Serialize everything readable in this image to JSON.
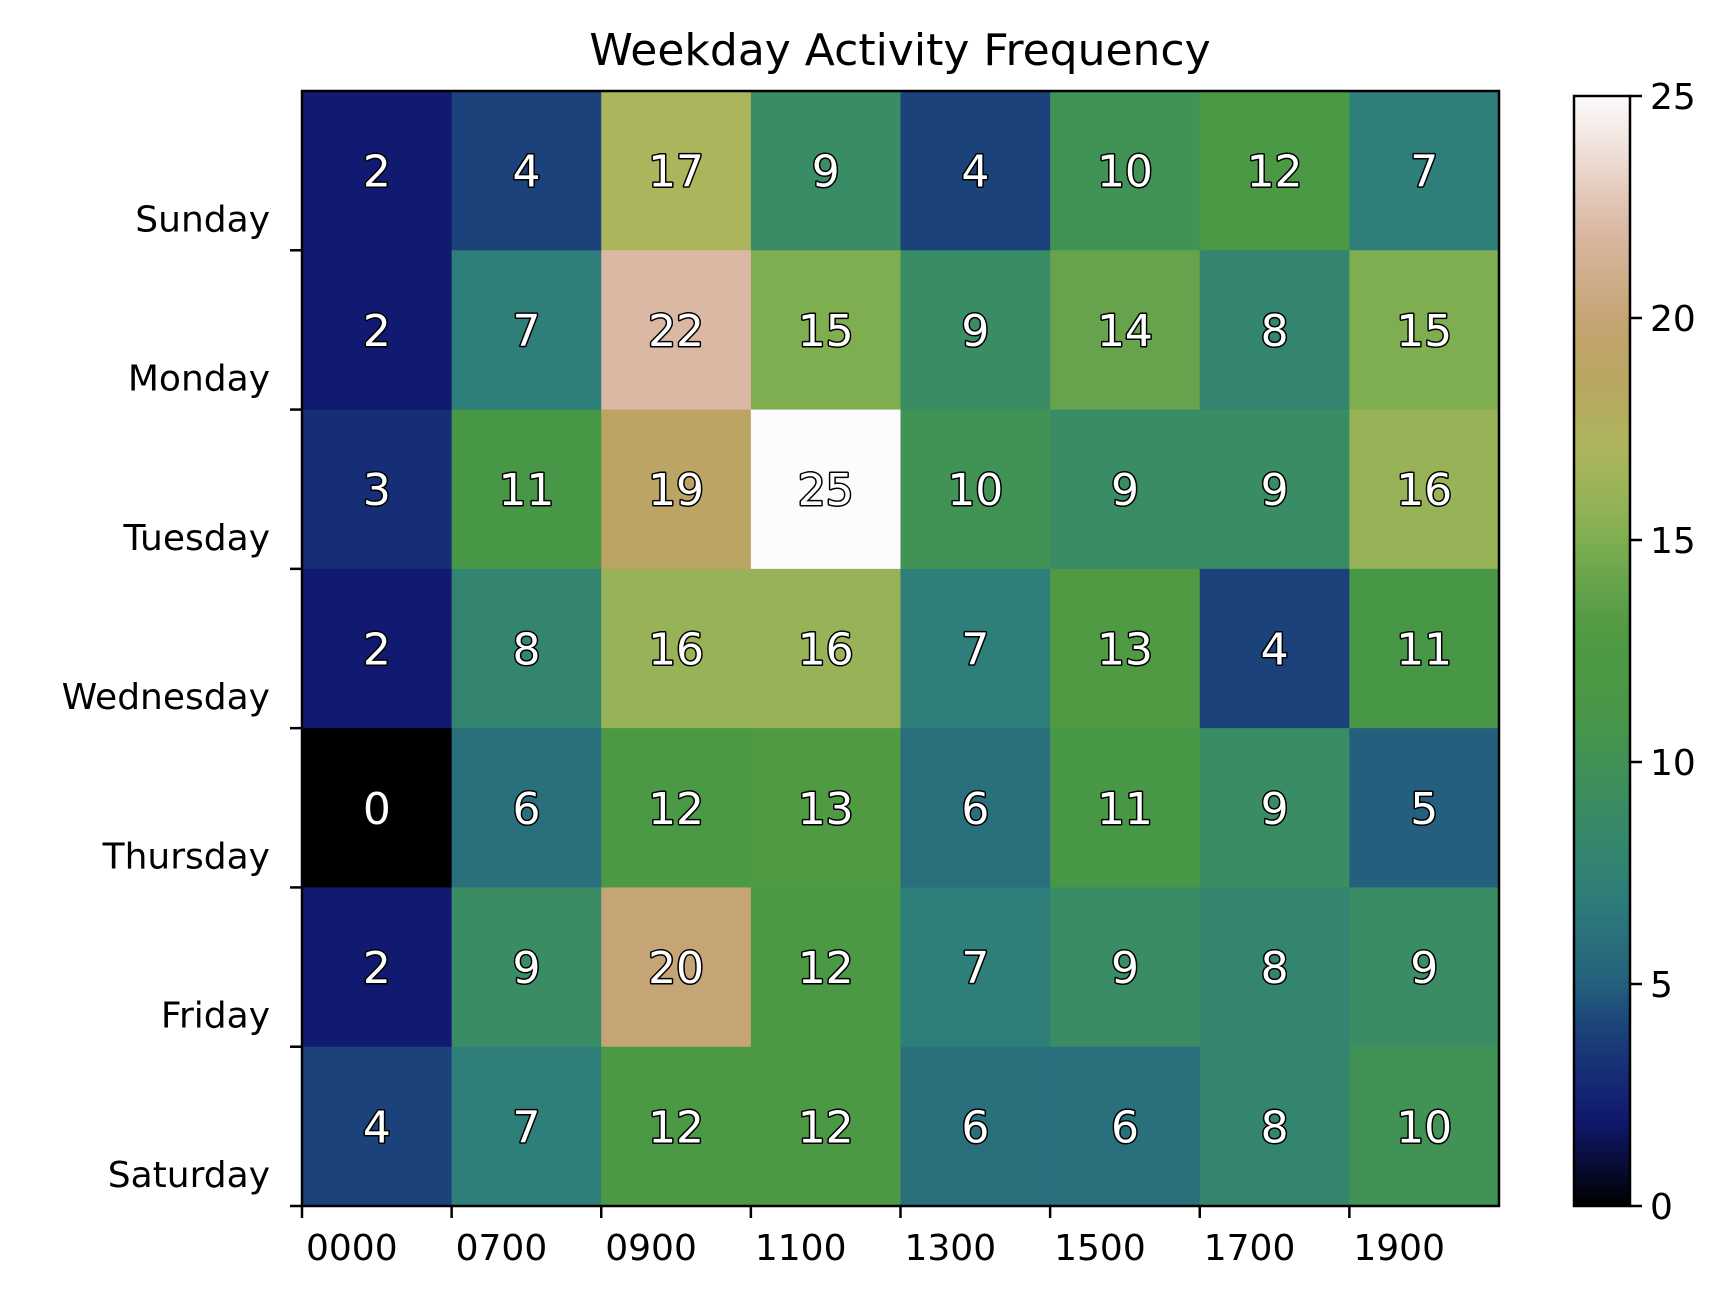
{
  "chart_data": {
    "type": "heatmap",
    "title": "Weekday Activity Frequency",
    "xlabel": "",
    "ylabel": "",
    "x_categories": [
      "0000",
      "0700",
      "0900",
      "1100",
      "1300",
      "1500",
      "1700",
      "1900"
    ],
    "y_categories": [
      "Sunday",
      "Monday",
      "Tuesday",
      "Wednesday",
      "Thursday",
      "Friday",
      "Saturday"
    ],
    "values": [
      [
        2,
        4,
        17,
        9,
        4,
        10,
        12,
        7
      ],
      [
        2,
        7,
        22,
        15,
        9,
        14,
        8,
        15
      ],
      [
        3,
        11,
        19,
        25,
        10,
        9,
        9,
        16
      ],
      [
        2,
        8,
        16,
        16,
        7,
        13,
        4,
        11
      ],
      [
        0,
        6,
        12,
        13,
        6,
        11,
        9,
        5
      ],
      [
        2,
        9,
        20,
        12,
        7,
        9,
        8,
        9
      ],
      [
        4,
        7,
        12,
        12,
        6,
        6,
        8,
        10
      ]
    ],
    "colormap": "gist_earth",
    "colorbar": {
      "range": [
        0,
        25
      ],
      "ticks": [
        0,
        5,
        10,
        15,
        20,
        25
      ]
    },
    "annotations": "cell values shown in white text with black outline",
    "grid": false
  },
  "colors": {
    "background": "#ffffff",
    "axis": "#000000",
    "annotation_fill": "#ffffff",
    "annotation_stroke": "#000000"
  }
}
